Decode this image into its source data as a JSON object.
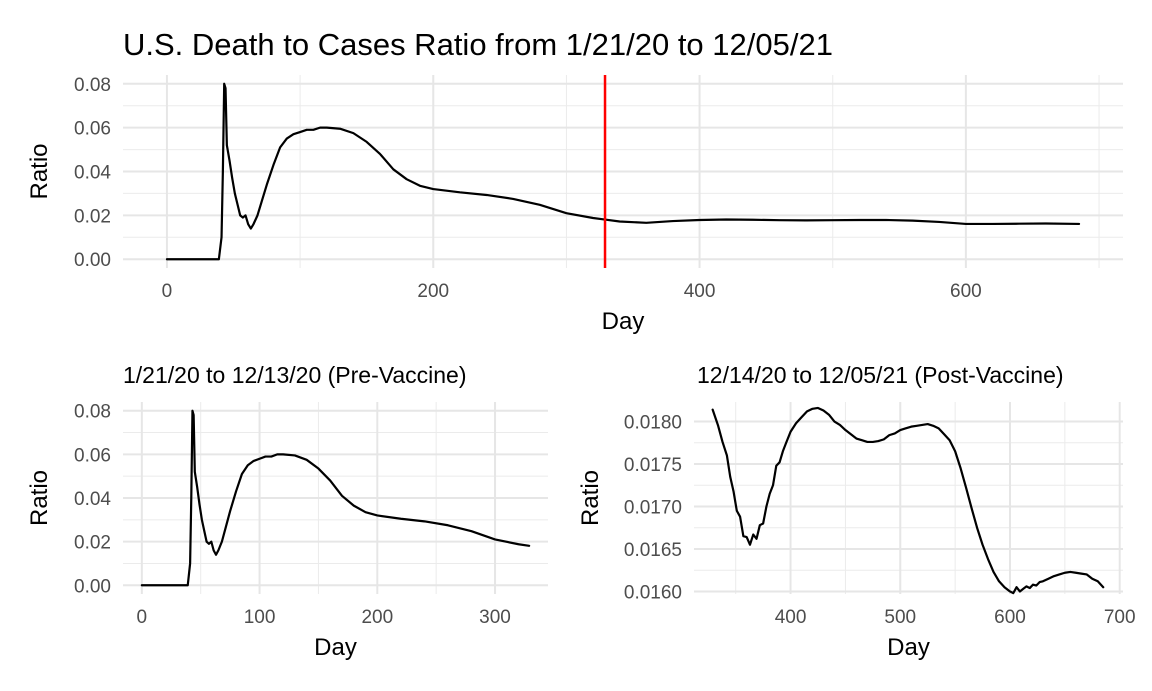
{
  "chart_data": [
    {
      "type": "line",
      "title": "U.S. Death to Cases Ratio from 1/21/20 to 12/05/21",
      "xlabel": "Day",
      "ylabel": "Ratio",
      "xlim": [
        -33,
        718
      ],
      "ylim": [
        -0.004,
        0.084
      ],
      "xticks": [
        0,
        200,
        400,
        600
      ],
      "xtick_labels": [
        "0",
        "200",
        "400",
        "600"
      ],
      "yticks": [
        0,
        0.02,
        0.04,
        0.06,
        0.08
      ],
      "ytick_labels": [
        "0.00",
        "0.02",
        "0.04",
        "0.06",
        "0.08"
      ],
      "grid": true,
      "vline": {
        "x": 329,
        "color": "#ff0000"
      },
      "series": [
        {
          "color": "#000000",
          "x": [
            0,
            39,
            41,
            42,
            43,
            44,
            45,
            47,
            49,
            51,
            53,
            55,
            57,
            59,
            61,
            63,
            65,
            68,
            71,
            75,
            80,
            85,
            90,
            95,
            100,
            105,
            110,
            115,
            120,
            130,
            140,
            150,
            160,
            170,
            180,
            190,
            200,
            220,
            240,
            260,
            280,
            300,
            320,
            329,
            340,
            360,
            380,
            400,
            420,
            440,
            460,
            480,
            500,
            520,
            540,
            560,
            580,
            600,
            620,
            640,
            660,
            685
          ],
          "y": [
            0,
            0,
            0.01,
            0.04,
            0.08,
            0.078,
            0.052,
            0.045,
            0.037,
            0.03,
            0.025,
            0.02,
            0.019,
            0.02,
            0.016,
            0.014,
            0.016,
            0.02,
            0.026,
            0.034,
            0.043,
            0.051,
            0.055,
            0.057,
            0.058,
            0.059,
            0.059,
            0.06,
            0.06,
            0.0595,
            0.0575,
            0.0535,
            0.048,
            0.041,
            0.0365,
            0.0335,
            0.032,
            0.0305,
            0.0293,
            0.0275,
            0.0248,
            0.021,
            0.0188,
            0.0181,
            0.0172,
            0.0166,
            0.0174,
            0.0179,
            0.0181,
            0.018,
            0.0178,
            0.0177,
            0.0178,
            0.0179,
            0.0179,
            0.0176,
            0.017,
            0.0161,
            0.0161,
            0.0162,
            0.0163,
            0.0161
          ]
        }
      ]
    },
    {
      "type": "line",
      "title": "1/21/20 to 12/13/20 (Pre-Vaccine)",
      "xlabel": "Day",
      "ylabel": "Ratio",
      "xlim": [
        -16,
        345
      ],
      "ylim": [
        -0.004,
        0.084
      ],
      "xticks": [
        0,
        100,
        200,
        300
      ],
      "xtick_labels": [
        "0",
        "100",
        "200",
        "300"
      ],
      "yticks": [
        0,
        0.02,
        0.04,
        0.06,
        0.08
      ],
      "ytick_labels": [
        "0.00",
        "0.02",
        "0.04",
        "0.06",
        "0.08"
      ],
      "grid": true,
      "series": [
        {
          "color": "#000000",
          "x": [
            0,
            39,
            41,
            42,
            43,
            44,
            45,
            47,
            49,
            51,
            53,
            55,
            57,
            59,
            61,
            63,
            65,
            68,
            71,
            75,
            80,
            85,
            90,
            95,
            100,
            105,
            110,
            115,
            120,
            130,
            140,
            150,
            160,
            170,
            180,
            190,
            200,
            220,
            240,
            260,
            280,
            300,
            320,
            329
          ],
          "y": [
            0,
            0,
            0.01,
            0.04,
            0.08,
            0.078,
            0.052,
            0.045,
            0.037,
            0.03,
            0.025,
            0.02,
            0.019,
            0.02,
            0.016,
            0.014,
            0.016,
            0.02,
            0.026,
            0.034,
            0.043,
            0.051,
            0.055,
            0.057,
            0.058,
            0.059,
            0.059,
            0.06,
            0.06,
            0.0595,
            0.0575,
            0.0535,
            0.048,
            0.041,
            0.0365,
            0.0335,
            0.032,
            0.0305,
            0.0293,
            0.0275,
            0.0248,
            0.021,
            0.0188,
            0.0181
          ]
        }
      ]
    },
    {
      "type": "line",
      "title": "12/14/20 to 12/05/21 (Post-Vaccine)",
      "xlabel": "Day",
      "ylabel": "Ratio",
      "xlim": [
        312,
        703
      ],
      "ylim": [
        0.01597,
        0.01823
      ],
      "xticks": [
        400,
        500,
        600,
        700
      ],
      "xtick_labels": [
        "400",
        "500",
        "600",
        "700"
      ],
      "yticks": [
        0.016,
        0.0165,
        0.017,
        0.0175,
        0.018
      ],
      "ytick_labels": [
        "0.0160",
        "0.0165",
        "0.0170",
        "0.0175",
        "0.0180"
      ],
      "grid": true,
      "series": [
        {
          "color": "#000000",
          "x": [
            329,
            334,
            338,
            342,
            345,
            348,
            351,
            354,
            357,
            360,
            363,
            366,
            369,
            372,
            375,
            378,
            381,
            384,
            387,
            390,
            393,
            396,
            400,
            405,
            410,
            415,
            420,
            425,
            430,
            435,
            440,
            445,
            450,
            455,
            460,
            465,
            470,
            475,
            480,
            485,
            490,
            495,
            500,
            505,
            510,
            515,
            520,
            525,
            530,
            535,
            540,
            545,
            550,
            555,
            560,
            565,
            570,
            575,
            580,
            585,
            590,
            595,
            600,
            603,
            606,
            609,
            612,
            615,
            618,
            621,
            624,
            627,
            630,
            635,
            640,
            645,
            650,
            655,
            660,
            665,
            670,
            675,
            680,
            685
          ],
          "y": [
            0.01814,
            0.01795,
            0.01776,
            0.0176,
            0.01735,
            0.01718,
            0.01695,
            0.01688,
            0.01665,
            0.01664,
            0.01655,
            0.01667,
            0.01662,
            0.01678,
            0.0168,
            0.017,
            0.01715,
            0.01725,
            0.01748,
            0.01752,
            0.01765,
            0.01775,
            0.01788,
            0.01798,
            0.01805,
            0.01812,
            0.01815,
            0.01816,
            0.01813,
            0.01808,
            0.018,
            0.01796,
            0.0179,
            0.01785,
            0.0178,
            0.01778,
            0.01776,
            0.01776,
            0.01777,
            0.01779,
            0.01784,
            0.01786,
            0.0179,
            0.01792,
            0.01794,
            0.01795,
            0.01796,
            0.01797,
            0.01795,
            0.01792,
            0.01785,
            0.01778,
            0.01765,
            0.01745,
            0.01722,
            0.01698,
            0.01675,
            0.01655,
            0.01638,
            0.01623,
            0.01612,
            0.01605,
            0.016,
            0.01598,
            0.01605,
            0.016,
            0.01603,
            0.01606,
            0.01604,
            0.01608,
            0.01607,
            0.01611,
            0.01612,
            0.01615,
            0.01618,
            0.0162,
            0.01622,
            0.01623,
            0.01622,
            0.01621,
            0.0162,
            0.01615,
            0.01612,
            0.01605
          ]
        }
      ]
    }
  ]
}
